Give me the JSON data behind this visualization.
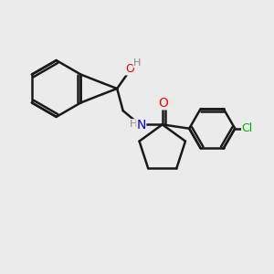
{
  "background_color": "#ebebeb",
  "line_color": "#1a1a1a",
  "bond_width": 1.8,
  "atom_colors": {
    "O": "#ff0000",
    "N": "#0000ff",
    "Cl": "#00aa00",
    "H_label": "#888888",
    "C": "#1a1a1a"
  },
  "font_size": 9
}
